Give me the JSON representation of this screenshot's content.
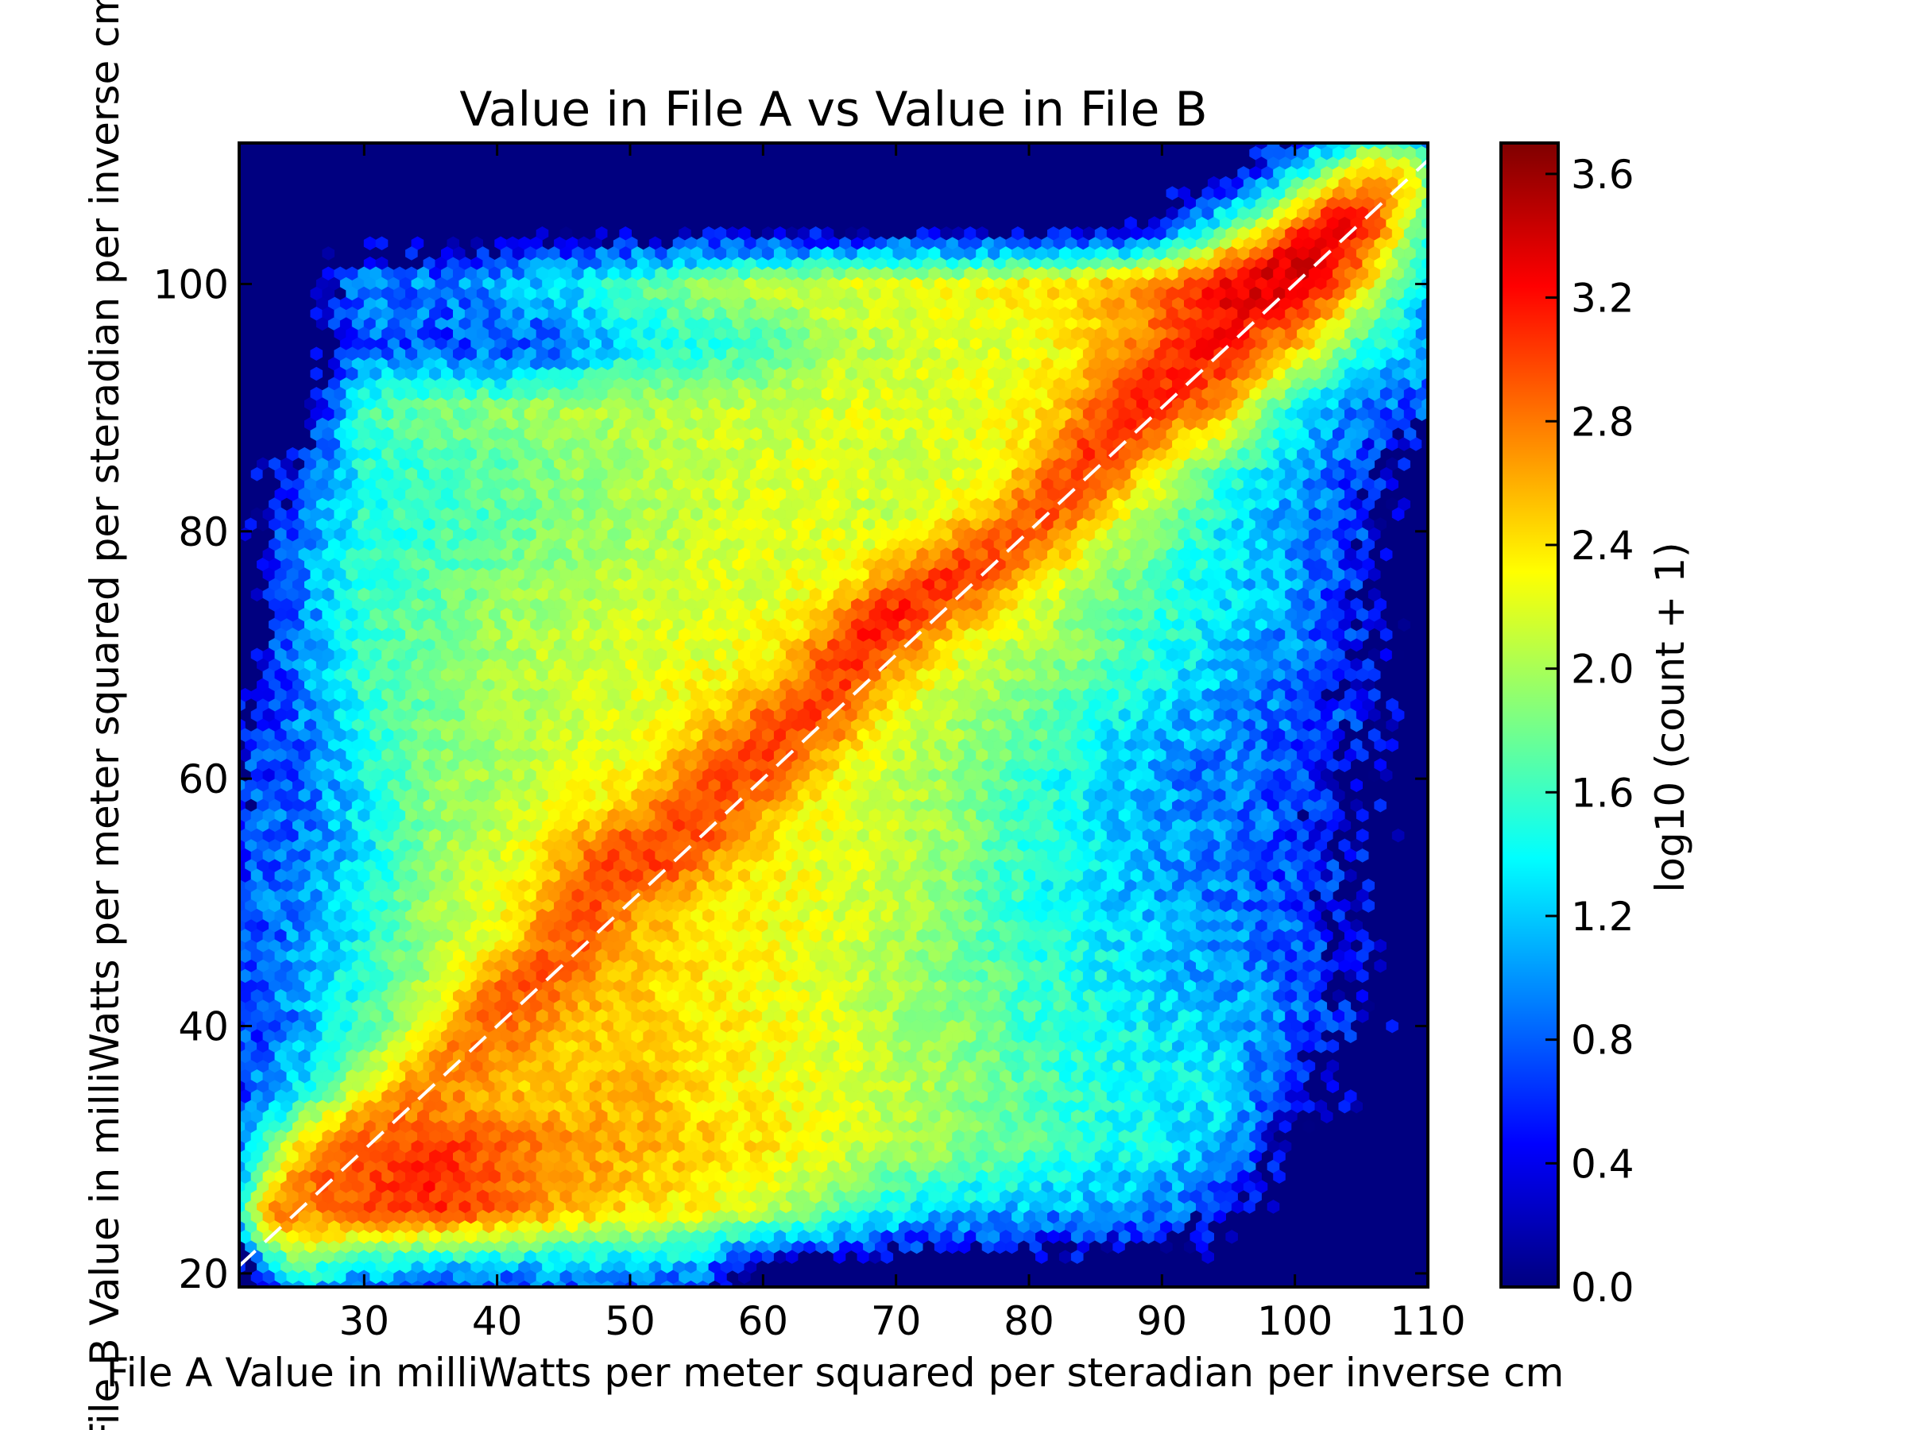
{
  "chart_data": {
    "type": "heatmap",
    "subtype": "hexbin",
    "title": "Value in File A vs Value in File B",
    "xlabel": "File A Value in milliWatts per meter squared per steradian per inverse cm",
    "ylabel": "File B Value in milliWatts per meter squared per steradian per inverse cm",
    "xlim": [
      20.6,
      110
    ],
    "ylim": [
      18.9,
      111.4
    ],
    "gridsize": 100,
    "x_ticks": [
      {
        "value": 30,
        "label": "30"
      },
      {
        "value": 40,
        "label": "40"
      },
      {
        "value": 50,
        "label": "50"
      },
      {
        "value": 60,
        "label": "60"
      },
      {
        "value": 70,
        "label": "70"
      },
      {
        "value": 80,
        "label": "80"
      },
      {
        "value": 90,
        "label": "90"
      },
      {
        "value": 100,
        "label": "100"
      },
      {
        "value": 110,
        "label": "110"
      }
    ],
    "y_ticks": [
      {
        "value": 20,
        "label": "20"
      },
      {
        "value": 40,
        "label": "40"
      },
      {
        "value": 60,
        "label": "60"
      },
      {
        "value": 80,
        "label": "80"
      },
      {
        "value": 100,
        "label": "100"
      }
    ],
    "colorbar": {
      "label": "log10 (count + 1)",
      "colormap": "jet",
      "min": 0,
      "max": 3.7,
      "ticks": [
        {
          "value": 0.0,
          "label": "0.0"
        },
        {
          "value": 0.4,
          "label": "0.4"
        },
        {
          "value": 0.8,
          "label": "0.8"
        },
        {
          "value": 1.2,
          "label": "1.2"
        },
        {
          "value": 1.6,
          "label": "1.6"
        },
        {
          "value": 2.0,
          "label": "2.0"
        },
        {
          "value": 2.4,
          "label": "2.4"
        },
        {
          "value": 2.8,
          "label": "2.8"
        },
        {
          "value": 3.2,
          "label": "3.2"
        },
        {
          "value": 3.6,
          "label": "3.6"
        }
      ]
    },
    "reference_line": {
      "style": "dashed",
      "color": "#ffffff",
      "slope": 1,
      "intercept": 0
    },
    "empty_color": "#000080",
    "density_grid": {
      "note": "approximate background log10(count+1) sampled every 5 units",
      "x": [
        20,
        25,
        30,
        35,
        40,
        45,
        50,
        55,
        60,
        65,
        70,
        75,
        80,
        85,
        90,
        95,
        100,
        105,
        110
      ],
      "y": [
        110,
        105,
        100,
        95,
        90,
        85,
        80,
        75,
        70,
        65,
        60,
        55,
        50,
        45,
        40,
        35,
        30,
        25,
        20
      ],
      "values": [
        [
          0,
          0,
          0,
          0,
          0,
          0,
          0,
          0,
          0,
          0,
          0,
          0,
          0,
          0,
          0,
          0,
          1.0,
          1.8,
          1.2
        ],
        [
          0,
          0,
          0,
          0,
          0,
          0,
          0,
          0,
          0,
          0,
          0,
          0,
          0,
          0,
          0.3,
          1.6,
          2.3,
          2.7,
          1.4
        ],
        [
          0,
          0,
          1.0,
          0.9,
          1.1,
          1.3,
          1.7,
          1.9,
          2.1,
          2.2,
          2.2,
          2.3,
          2.4,
          2.5,
          2.8,
          3.0,
          3.0,
          2.4,
          1.2
        ],
        [
          0,
          0,
          0.8,
          0.7,
          0.7,
          0.8,
          1.4,
          1.5,
          1.6,
          2.0,
          2.1,
          2.2,
          2.2,
          2.5,
          2.8,
          2.9,
          2.6,
          1.6,
          1.0
        ],
        [
          0,
          0,
          1.6,
          1.8,
          1.9,
          2.0,
          2.0,
          2.1,
          2.1,
          2.2,
          2.2,
          2.2,
          2.3,
          2.5,
          2.8,
          2.5,
          1.4,
          0.9,
          0.7
        ],
        [
          0,
          0.6,
          1.5,
          1.6,
          1.7,
          1.9,
          2.0,
          2.1,
          2.2,
          2.2,
          2.1,
          2.2,
          2.4,
          2.6,
          2.3,
          1.6,
          1.2,
          0.6,
          0
        ],
        [
          0,
          0.9,
          1.5,
          1.6,
          1.7,
          1.9,
          2.0,
          2.1,
          2.2,
          2.2,
          2.1,
          2.4,
          2.5,
          2.2,
          1.8,
          1.3,
          1.0,
          0.6,
          0
        ],
        [
          0,
          0.9,
          1.6,
          1.7,
          1.9,
          2.0,
          2.1,
          2.2,
          2.2,
          2.3,
          2.4,
          2.5,
          2.2,
          1.9,
          1.6,
          1.3,
          1.0,
          0.5,
          0
        ],
        [
          0,
          0.9,
          1.6,
          1.8,
          2.0,
          2.1,
          2.2,
          2.2,
          2.3,
          2.5,
          2.6,
          2.2,
          2.0,
          1.8,
          1.5,
          1.2,
          0.9,
          0.5,
          0
        ],
        [
          0.3,
          0.9,
          1.5,
          1.8,
          2.0,
          2.1,
          2.2,
          2.4,
          2.6,
          2.6,
          2.2,
          2.0,
          1.8,
          1.5,
          1.2,
          1.0,
          0.8,
          0.5,
          0
        ],
        [
          0.6,
          0.8,
          1.4,
          1.9,
          2.0,
          2.2,
          2.3,
          2.6,
          2.6,
          2.3,
          2.1,
          1.9,
          1.6,
          1.3,
          1.0,
          0.9,
          0.7,
          0.3,
          0
        ],
        [
          0.7,
          0.8,
          1.3,
          1.9,
          2.1,
          2.4,
          2.7,
          2.7,
          2.4,
          2.2,
          2.1,
          1.9,
          1.5,
          1.3,
          1.1,
          0.9,
          0.7,
          0.4,
          0
        ],
        [
          0.7,
          0.9,
          1.4,
          2.0,
          2.2,
          2.5,
          2.6,
          2.4,
          2.3,
          2.2,
          2.1,
          1.8,
          1.5,
          1.3,
          1.1,
          0.9,
          0.7,
          0.4,
          0
        ],
        [
          0.7,
          1.0,
          1.5,
          2.0,
          2.3,
          2.6,
          2.5,
          2.4,
          2.3,
          2.2,
          2.0,
          1.8,
          1.6,
          1.4,
          1.2,
          1.0,
          0.8,
          0.4,
          0
        ],
        [
          0.6,
          1.0,
          1.6,
          2.2,
          2.6,
          2.5,
          2.5,
          2.4,
          2.3,
          2.2,
          2.0,
          1.9,
          1.6,
          1.5,
          1.3,
          1.2,
          0.8,
          0.3,
          0
        ],
        [
          0.6,
          1.3,
          2.2,
          2.6,
          2.5,
          2.5,
          2.6,
          2.4,
          2.3,
          2.2,
          2.1,
          1.9,
          1.7,
          1.5,
          1.4,
          1.3,
          0.6,
          0.3,
          0
        ],
        [
          0.8,
          2.3,
          2.9,
          3.1,
          2.9,
          2.7,
          2.6,
          2.5,
          2.4,
          2.2,
          2.0,
          1.9,
          1.7,
          1.5,
          1.4,
          1.1,
          0,
          0,
          0
        ],
        [
          0.5,
          2.4,
          3.0,
          3.1,
          2.9,
          2.6,
          2.4,
          2.3,
          2.1,
          1.8,
          1.4,
          1.2,
          1.1,
          1.0,
          0.9,
          0.6,
          0,
          0,
          0
        ],
        [
          0,
          1.5,
          1.2,
          1.0,
          1.0,
          1.0,
          1.1,
          0.9,
          0,
          0,
          0,
          0,
          0,
          0,
          0,
          0,
          0,
          0,
          0
        ]
      ]
    },
    "ridge": [
      {
        "x": 24,
        "y": 25,
        "peak": 2.7
      },
      {
        "x": 30,
        "y": 29,
        "peak": 3.0
      },
      {
        "x": 35,
        "y": 34,
        "peak": 2.7
      },
      {
        "x": 40,
        "y": 41,
        "peak": 2.9
      },
      {
        "x": 45,
        "y": 46,
        "peak": 2.9
      },
      {
        "x": 48,
        "y": 52,
        "peak": 3.0
      },
      {
        "x": 52,
        "y": 54,
        "peak": 3.0
      },
      {
        "x": 56,
        "y": 58,
        "peak": 3.0
      },
      {
        "x": 60,
        "y": 62,
        "peak": 3.0
      },
      {
        "x": 64,
        "y": 66,
        "peak": 3.0
      },
      {
        "x": 68,
        "y": 72,
        "peak": 3.1
      },
      {
        "x": 72,
        "y": 75,
        "peak": 3.1
      },
      {
        "x": 76,
        "y": 77,
        "peak": 3.0
      },
      {
        "x": 80,
        "y": 80,
        "peak": 2.9
      },
      {
        "x": 84,
        "y": 85,
        "peak": 3.0
      },
      {
        "x": 88,
        "y": 91,
        "peak": 3.1
      },
      {
        "x": 92,
        "y": 93,
        "peak": 3.1
      },
      {
        "x": 96,
        "y": 99,
        "peak": 3.3
      },
      {
        "x": 100,
        "y": 101,
        "peak": 3.4
      },
      {
        "x": 104,
        "y": 105,
        "peak": 3.2
      },
      {
        "x": 107,
        "y": 108,
        "peak": 2.6
      }
    ]
  }
}
